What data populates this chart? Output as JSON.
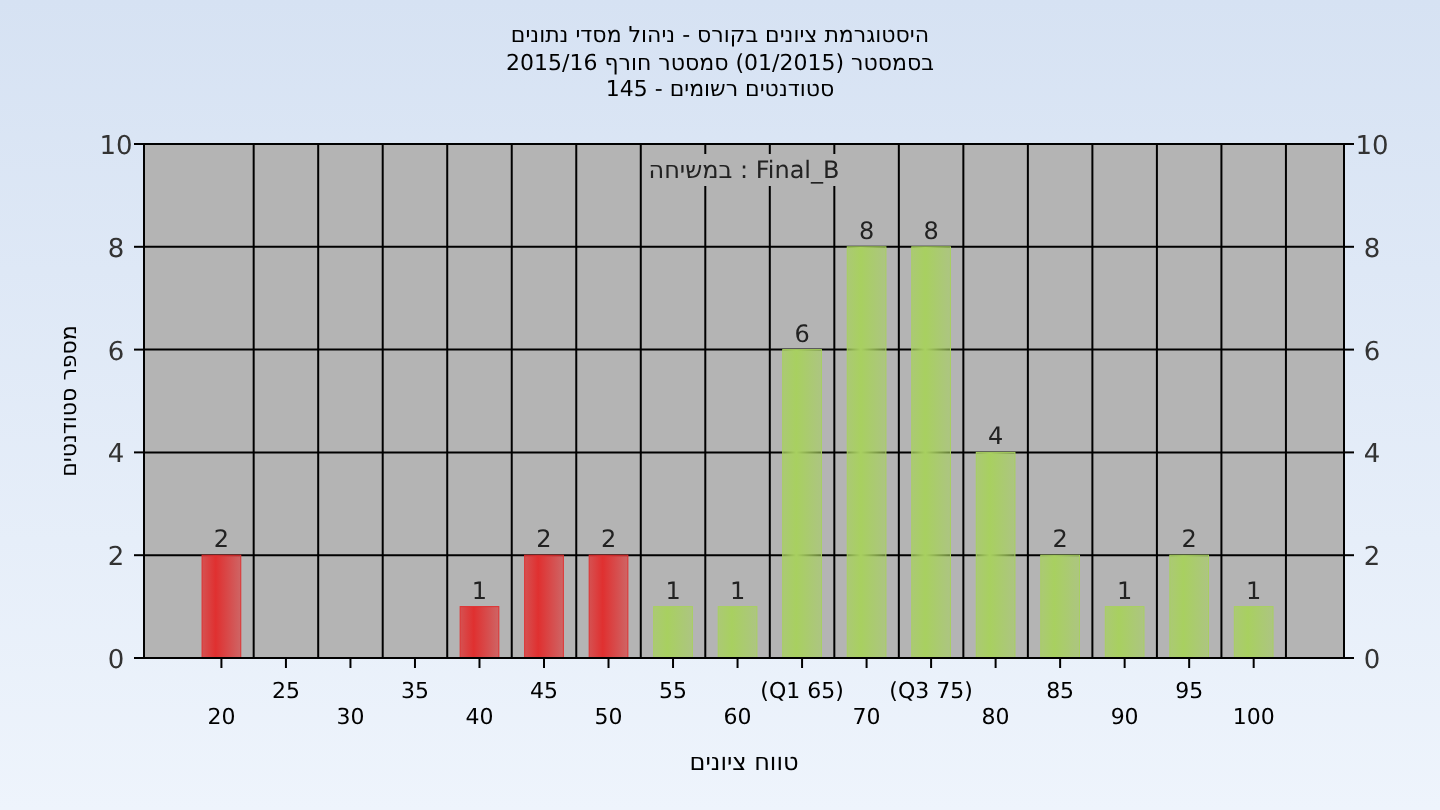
{
  "chart_data": {
    "type": "bar",
    "title": "היסטוגרמת ציונים בקורס - ניהול מסדי נתונים",
    "subtitle": "בסמסטר  (01/2015)  סמסטר חורף 2015/16\nסטודנטים רשומים - 145",
    "annotations": [
      "במשיחה : Final_B"
    ],
    "xlabel": "טווח ציונים",
    "ylabel": "מספר סטודנטים",
    "categories": [
      "20",
      "25",
      "30",
      "35",
      "40",
      "45",
      "50",
      "55",
      "60",
      "(Q1 65)",
      "70",
      "(Q3 75)",
      "80",
      "85",
      "90",
      "95",
      "100"
    ],
    "values": [
      2,
      0,
      0,
      0,
      1,
      2,
      2,
      1,
      1,
      6,
      8,
      8,
      4,
      2,
      1,
      2,
      1
    ],
    "colors": [
      "#e03030",
      "#e03030",
      "#e03030",
      "#e03030",
      "#e03030",
      "#e03030",
      "#e03030",
      "#a8d060",
      "#a8d060",
      "#a8d060",
      "#a8d060",
      "#a8d060",
      "#a8d060",
      "#a8d060",
      "#a8d060",
      "#a8d060",
      "#a8d060"
    ],
    "value_labels": [
      "2",
      null,
      null,
      null,
      "1",
      "2",
      "2",
      "1",
      "1",
      "6",
      "8",
      "8",
      "4",
      "2",
      "1",
      "2",
      "1"
    ],
    "ylim": [
      0,
      10
    ],
    "yticks": [
      0,
      2,
      4,
      6,
      8,
      10
    ],
    "y2lim": [
      0,
      10
    ],
    "y2ticks": [
      0,
      2,
      4,
      6,
      8,
      10
    ],
    "grid": true
  }
}
